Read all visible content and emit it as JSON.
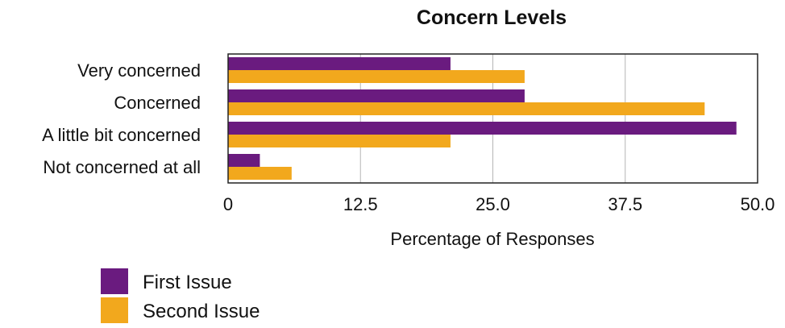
{
  "chart_data": {
    "type": "bar",
    "orientation": "horizontal",
    "title": "Concern Levels",
    "xlabel": "Percentage of Responses",
    "ylabel": "",
    "categories": [
      "Very concerned",
      "Concerned",
      "A little bit concerned",
      "Not concerned at all"
    ],
    "series": [
      {
        "name": "First Issue",
        "color": "#6a1b7f",
        "values": [
          21,
          28,
          48,
          3
        ]
      },
      {
        "name": "Second Issue",
        "color": "#f2a81d",
        "values": [
          28,
          45,
          21,
          6
        ]
      }
    ],
    "xlim": [
      0,
      50
    ],
    "xticks": [
      "0",
      "12.5",
      "25.0",
      "37.5",
      "50.0"
    ],
    "xtick_values": [
      0,
      12.5,
      25,
      37.5,
      50
    ],
    "grid": true,
    "legend_position": "bottom-left"
  }
}
